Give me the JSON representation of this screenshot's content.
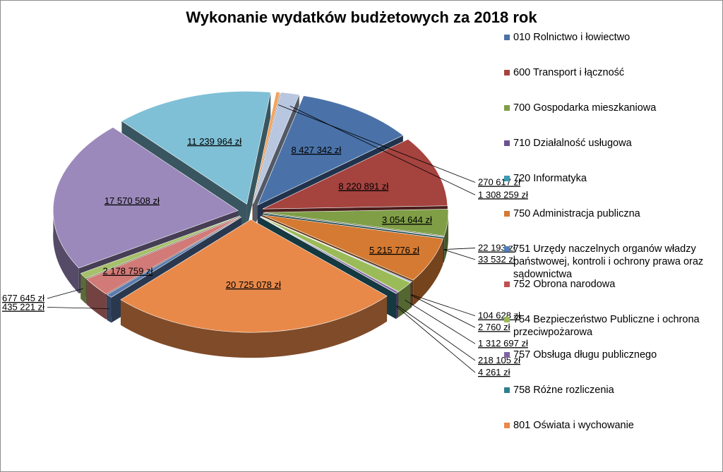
{
  "chart_data": {
    "type": "pie",
    "title": "Wykonanie wydatków budżetowych za 2018 rok",
    "legend_position": "right",
    "series": [
      {
        "name": "010 Rolnictwo i łowiectwo",
        "label": "8 427 342 zł",
        "value": 8427342,
        "color": "#4a72a8"
      },
      {
        "name": "600 Transport i łączność",
        "label": "8 220 891 zł",
        "value": 8220891,
        "color": "#a5433f"
      },
      {
        "name": "700 Gospodarka mieszkaniowa",
        "label": "3 054 644 zł",
        "value": 3054644,
        "color": "#7f9e46"
      },
      {
        "name": "710 Działalność usługowa",
        "label": "22 193 zł",
        "value": 22193,
        "color": "#6b5190"
      },
      {
        "name": "720 Informatyka",
        "label": "33 532 zł",
        "value": 33532,
        "color": "#3b9bb4"
      },
      {
        "name": "750 Administracja publiczna",
        "label": "5 215 776 zł",
        "value": 5215776,
        "color": "#d57a32"
      },
      {
        "name": "751 Urzędy naczelnych organów władzy państwowej, kontroli i ochrony prawa oraz sądownictwa",
        "label": "104 628 zł",
        "value": 104628,
        "color": "#4f80bd"
      },
      {
        "name": "752 Obrona narodowa",
        "label": "2 760 zł",
        "value": 2760,
        "color": "#c0504d"
      },
      {
        "name": "754 Bezpieczeństwo Publiczne i ochrona przeciwpożarowa",
        "label": "1 312 697 zł",
        "value": 1312697,
        "color": "#9bbb59"
      },
      {
        "name": "757 Obsługa długu publicznego",
        "label": "218 105 zł",
        "value": 218105,
        "color": "#8064a2"
      },
      {
        "name": "758 Różne rozliczenia",
        "label": "4 261 zł",
        "value": 4261,
        "color": "#2f7f8f"
      },
      {
        "name": "801 Oświata i wychowanie",
        "label": "20 725 078 zł",
        "value": 20725078,
        "color": "#e8894a"
      },
      {
        "name": "",
        "label": "435 221 zł",
        "value": 435221,
        "color": "#5b7cae"
      },
      {
        "name": "",
        "label": "2 178 759 zł",
        "value": 2178759,
        "color": "#d27a77"
      },
      {
        "name": "",
        "label": "677 645 zł",
        "value": 677645,
        "color": "#a6c06b"
      },
      {
        "name": "",
        "label": "17 570 508 zł",
        "value": 17570508,
        "color": "#9b89bb"
      },
      {
        "name": "",
        "label": "11 239 964 zł",
        "value": 11239964,
        "color": "#7fc0d6"
      },
      {
        "name": "",
        "label": "270 617 zł",
        "value": 270617,
        "color": "#f2a35e"
      },
      {
        "name": "",
        "label": "1 308 259 zł",
        "value": 1308259,
        "color": "#b8c6e0"
      }
    ]
  }
}
